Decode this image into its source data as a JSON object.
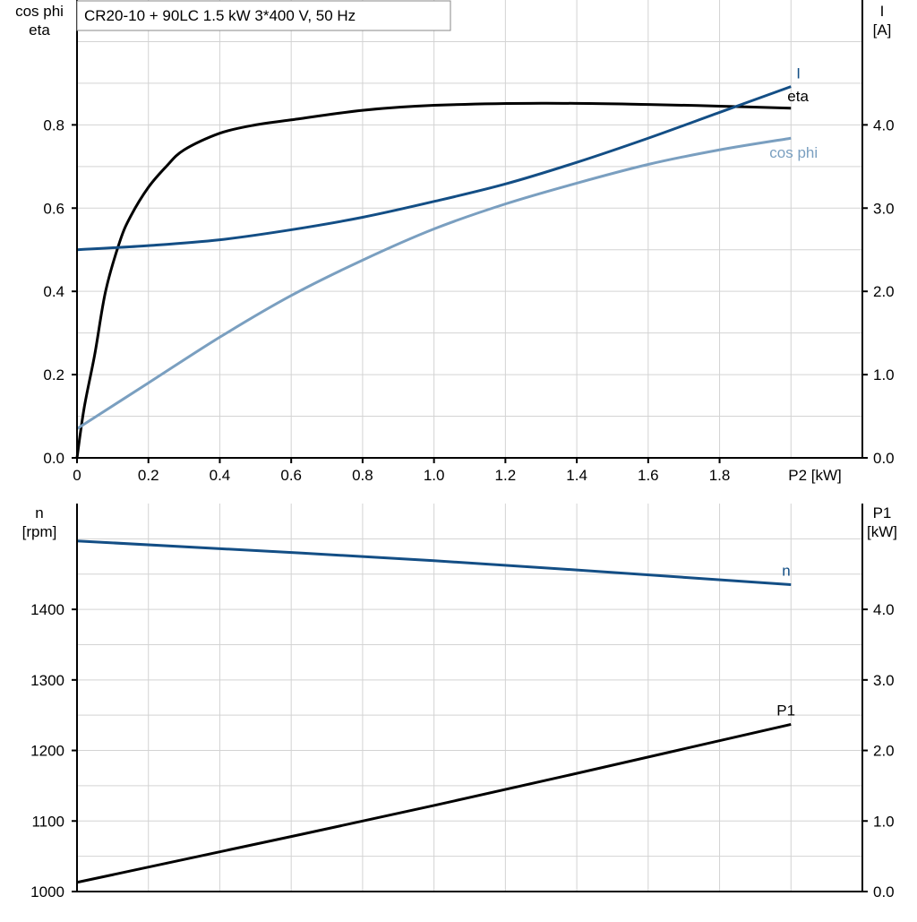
{
  "title": "CR20-10 + 90LC   1.5 kW   3*400 V, 50 Hz",
  "colors": {
    "eta": "#000000",
    "I": "#134e85",
    "cos_phi": "#7a9fc0",
    "n": "#134e85",
    "P1": "#000000",
    "grid": "#d3d3d3"
  },
  "chart_data": [
    {
      "type": "line",
      "xlabel": "P2 [kW]",
      "xlim": [
        0,
        2.2
      ],
      "x_ticks": [
        "0",
        "0.2",
        "0.4",
        "0.6",
        "0.8",
        "1.0",
        "1.2",
        "1.4",
        "1.6",
        "1.8"
      ],
      "x_tick_values": [
        0,
        0.2,
        0.4,
        0.6,
        0.8,
        1.0,
        1.2,
        1.4,
        1.6,
        1.8
      ],
      "ylabel_left": [
        "cos phi",
        "eta"
      ],
      "ylim_left": [
        0,
        1.1
      ],
      "y_ticks_left": [
        "0.0",
        "0.2",
        "0.4",
        "0.6",
        "0.8"
      ],
      "y_tick_values_left": [
        0,
        0.2,
        0.4,
        0.6,
        0.8
      ],
      "ylabel_right": [
        "I",
        "[A]"
      ],
      "ylim_right": [
        0,
        5.5
      ],
      "y_ticks_right": [
        "0.0",
        "1.0",
        "2.0",
        "3.0",
        "4.0"
      ],
      "y_tick_values_right": [
        0,
        1,
        2,
        3,
        4
      ],
      "grid": true,
      "series": [
        {
          "name": "eta",
          "axis": "left",
          "color_key": "eta",
          "x": [
            0,
            0.02,
            0.05,
            0.08,
            0.12,
            0.15,
            0.2,
            0.25,
            0.3,
            0.4,
            0.5,
            0.6,
            0.8,
            1.0,
            1.3,
            1.6,
            1.8,
            2.0
          ],
          "y": [
            0,
            0.12,
            0.25,
            0.4,
            0.52,
            0.58,
            0.65,
            0.7,
            0.74,
            0.78,
            0.8,
            0.812,
            0.835,
            0.847,
            0.852,
            0.849,
            0.845,
            0.84
          ]
        },
        {
          "name": "I",
          "axis": "right",
          "color_key": "I",
          "x": [
            0,
            0.2,
            0.4,
            0.6,
            0.8,
            1.0,
            1.2,
            1.4,
            1.6,
            1.8,
            2.0
          ],
          "y": [
            2.5,
            2.55,
            2.62,
            2.74,
            2.89,
            3.08,
            3.29,
            3.55,
            3.84,
            4.15,
            4.46
          ]
        },
        {
          "name": "cos phi",
          "axis": "left",
          "color_key": "cos_phi",
          "x": [
            0,
            0.2,
            0.4,
            0.6,
            0.8,
            1.0,
            1.2,
            1.4,
            1.6,
            1.8,
            2.0
          ],
          "y": [
            0.07,
            0.18,
            0.29,
            0.39,
            0.475,
            0.55,
            0.61,
            0.66,
            0.705,
            0.74,
            0.768
          ]
        }
      ]
    },
    {
      "type": "line",
      "xlim": [
        0,
        2.2
      ],
      "ylabel_left": [
        "n",
        "[rpm]"
      ],
      "ylim_left": [
        1000,
        1550
      ],
      "y_ticks_left": [
        "1000",
        "1100",
        "1200",
        "1300",
        "1400"
      ],
      "y_tick_values_left": [
        1000,
        1100,
        1200,
        1300,
        1400
      ],
      "ylabel_right": [
        "P1",
        "[kW]"
      ],
      "ylim_right": [
        0,
        5.5
      ],
      "y_ticks_right": [
        "0.0",
        "1.0",
        "2.0",
        "3.0",
        "4.0"
      ],
      "y_tick_values_right": [
        0,
        1,
        2,
        3,
        4
      ],
      "grid": true,
      "series": [
        {
          "name": "n",
          "axis": "left",
          "color_key": "n",
          "x": [
            0,
            1.0,
            2.0
          ],
          "y": [
            1497,
            1469,
            1435
          ]
        },
        {
          "name": "P1",
          "axis": "right",
          "color_key": "P1",
          "x": [
            0,
            1.0,
            2.0
          ],
          "y": [
            0.13,
            1.22,
            2.37
          ]
        }
      ]
    }
  ]
}
